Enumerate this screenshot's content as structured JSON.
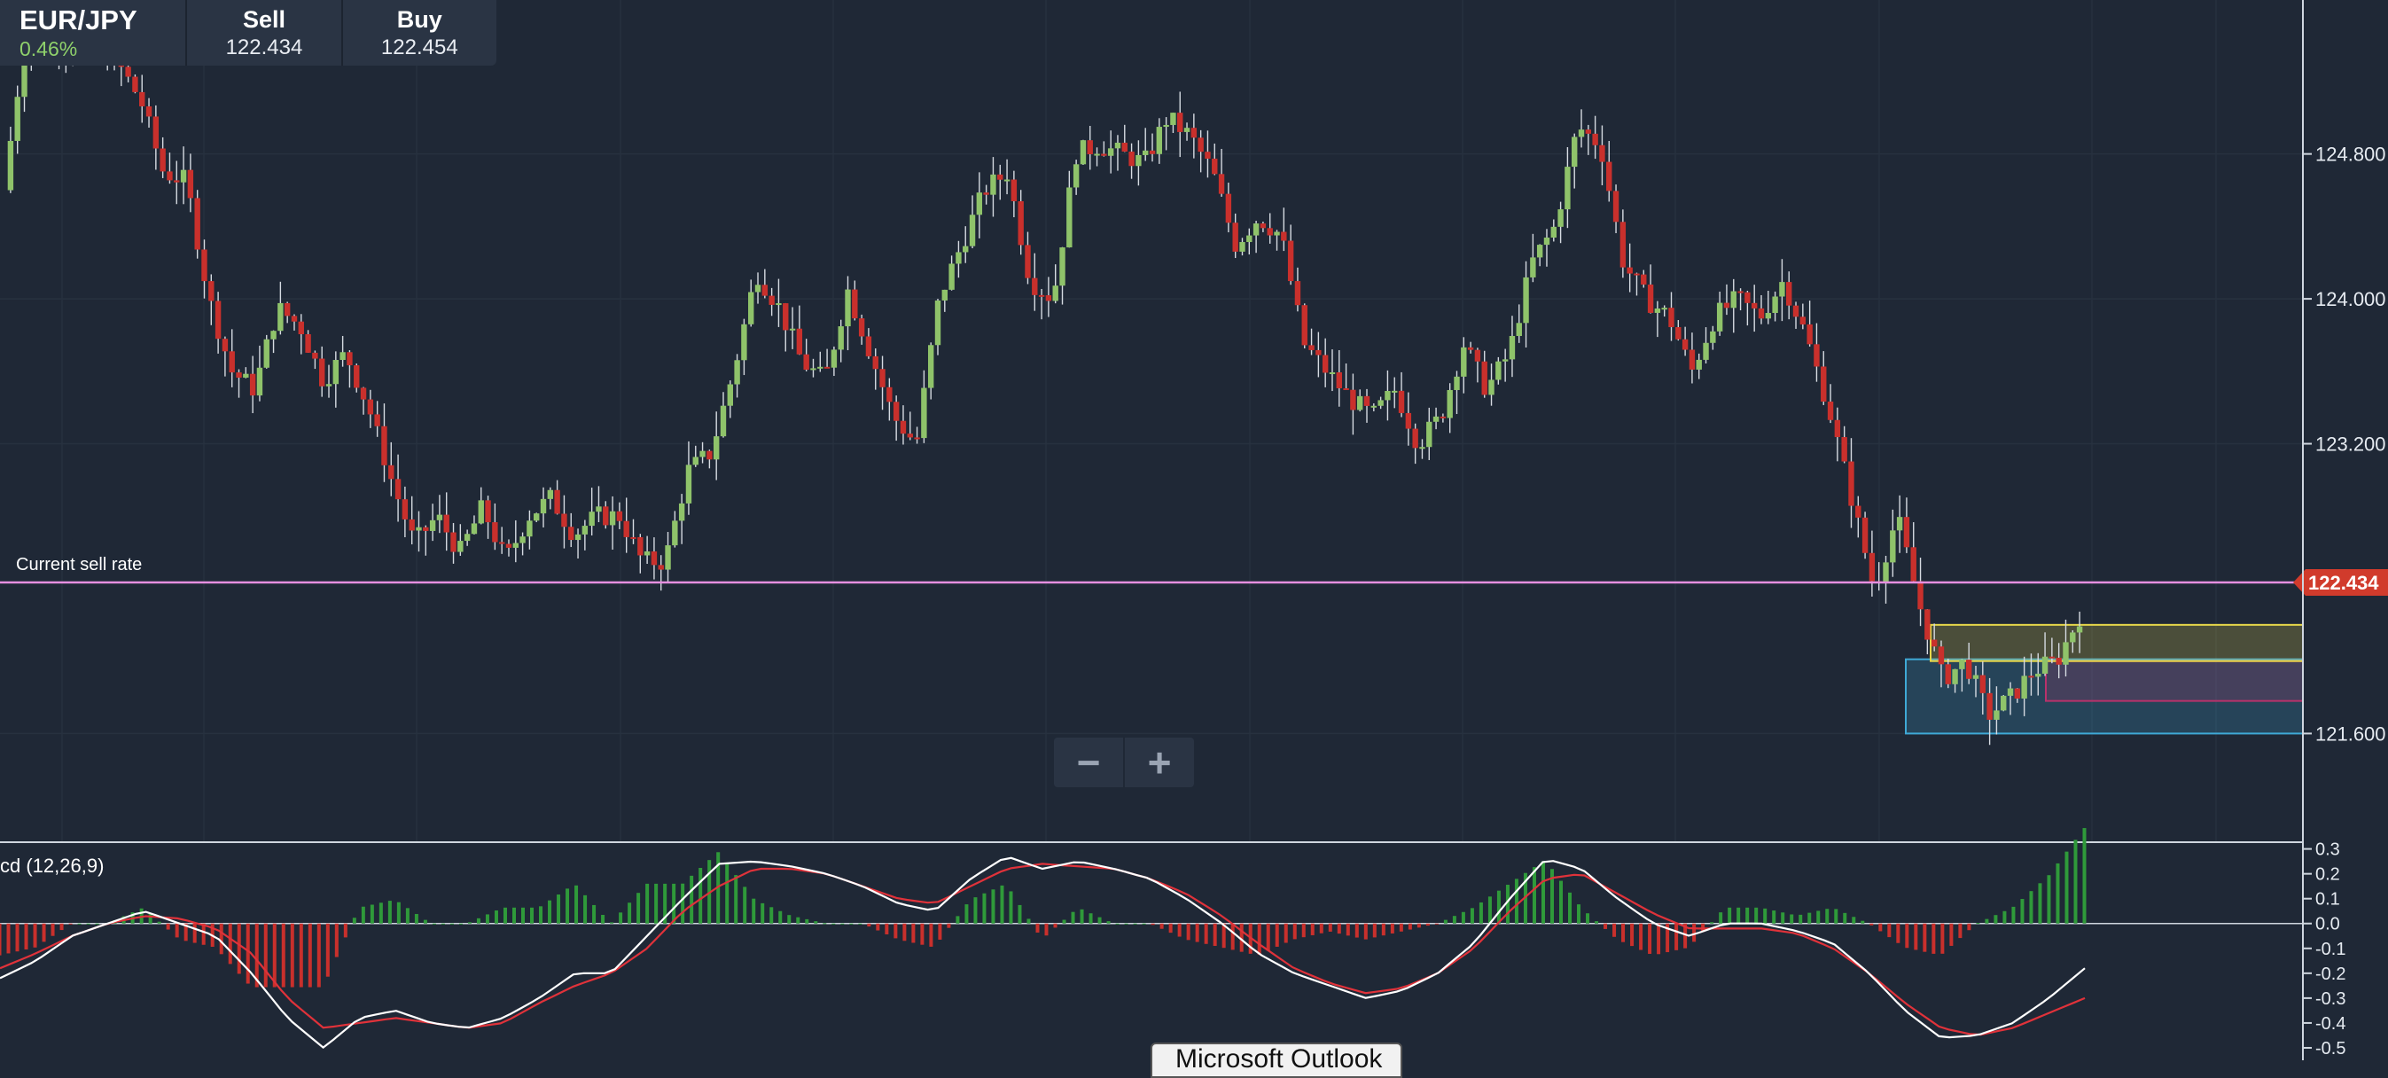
{
  "header": {
    "symbol": "EUR/JPY",
    "change": "0.46%",
    "sell_label": "Sell",
    "sell_value": "122.434",
    "buy_label": "Buy",
    "buy_value": "122.454"
  },
  "macd_label": "cd (12,26,9)",
  "sell_rate_label": "Current sell rate",
  "price_tag": "122.434",
  "zoom": {
    "out": "−",
    "in": "+"
  },
  "taskbar_tab": "Microsoft Outlook",
  "colors": {
    "up": "#8fc36a",
    "down": "#c9302c",
    "rate_line": "#e68fe0",
    "macd": "#ffffff",
    "signal": "#e0323a",
    "hist_up": "#2f9a3a",
    "hist_down": "#c9302c"
  },
  "chart_data": {
    "type": "candlestick",
    "price_axis": {
      "ticks": [
        "124.800",
        "124.000",
        "123.200",
        "121.600"
      ],
      "range": [
        121.0,
        125.65
      ]
    },
    "current_sell_rate": 122.434,
    "close_path": [
      124.6,
      125.5,
      125.5,
      125.4,
      125.4,
      125.3,
      125.1,
      124.7,
      124.65,
      124.0,
      123.6,
      123.5,
      123.95,
      123.85,
      123.55,
      123.7,
      123.4,
      123.0,
      122.65,
      122.8,
      122.6,
      122.85,
      122.55,
      122.8,
      122.9,
      122.7,
      122.8,
      122.8,
      122.55,
      122.55,
      123.05,
      123.15,
      123.6,
      124.15,
      123.95,
      123.65,
      123.55,
      124.05,
      123.7,
      123.35,
      123.2,
      124.0,
      124.3,
      124.6,
      124.7,
      124.1,
      124.0,
      124.8,
      124.85,
      124.8,
      124.75,
      125.0,
      124.9,
      124.7,
      124.3,
      124.45,
      124.35,
      123.75,
      123.6,
      123.45,
      123.35,
      123.5,
      123.2,
      123.35,
      123.75,
      123.5,
      123.7,
      124.2,
      124.4,
      124.95,
      124.85,
      124.2,
      124.0,
      123.9,
      123.6,
      123.9,
      124.0,
      123.9,
      124.1,
      123.8,
      123.4,
      122.9,
      122.4,
      122.8,
      122.3,
      121.9,
      122.0,
      121.7,
      121.8,
      121.95,
      122.0,
      122.25
    ],
    "zones": [
      {
        "low": 121.6,
        "high": 122.01,
        "color": "#3fa9d6"
      },
      {
        "low": 121.78,
        "high": 122.0,
        "color": "#b8326b"
      },
      {
        "low": 122.0,
        "high": 122.2,
        "color": "#e8d84a"
      }
    ],
    "macd": {
      "label": "cd (12,26,9)",
      "axis_ticks": [
        "0.3",
        "0.2",
        "0.1",
        "0.0",
        "-0.1",
        "-0.2",
        "-0.3",
        "-0.4",
        "-0.5"
      ],
      "range": [
        -0.55,
        0.32
      ],
      "macd_path": [
        -0.22,
        -0.15,
        -0.05,
        0.0,
        0.05,
        0.0,
        -0.05,
        -0.2,
        -0.38,
        -0.5,
        -0.38,
        -0.35,
        -0.4,
        -0.42,
        -0.38,
        -0.3,
        -0.2,
        -0.2,
        -0.05,
        0.1,
        0.24,
        0.25,
        0.23,
        0.2,
        0.15,
        0.08,
        0.05,
        0.18,
        0.27,
        0.22,
        0.25,
        0.22,
        0.18,
        0.1,
        0.0,
        -0.12,
        -0.2,
        -0.25,
        -0.3,
        -0.27,
        -0.2,
        -0.08,
        0.1,
        0.26,
        0.22,
        0.1,
        0.0,
        -0.05,
        0.0,
        0.0,
        -0.03,
        -0.08,
        -0.2,
        -0.35,
        -0.46,
        -0.45,
        -0.4,
        -0.3,
        -0.18
      ],
      "signal_path": [
        -0.18,
        -0.12,
        -0.05,
        0.0,
        0.03,
        0.02,
        -0.02,
        -0.12,
        -0.3,
        -0.42,
        -0.4,
        -0.38,
        -0.4,
        -0.42,
        -0.4,
        -0.32,
        -0.25,
        -0.2,
        -0.1,
        0.05,
        0.15,
        0.22,
        0.22,
        0.2,
        0.15,
        0.1,
        0.08,
        0.15,
        0.22,
        0.24,
        0.23,
        0.22,
        0.18,
        0.12,
        0.03,
        -0.08,
        -0.18,
        -0.24,
        -0.28,
        -0.26,
        -0.2,
        -0.1,
        0.05,
        0.18,
        0.2,
        0.12,
        0.04,
        -0.02,
        -0.02,
        -0.02,
        -0.04,
        -0.1,
        -0.2,
        -0.32,
        -0.42,
        -0.45,
        -0.42,
        -0.36,
        -0.3
      ]
    }
  }
}
